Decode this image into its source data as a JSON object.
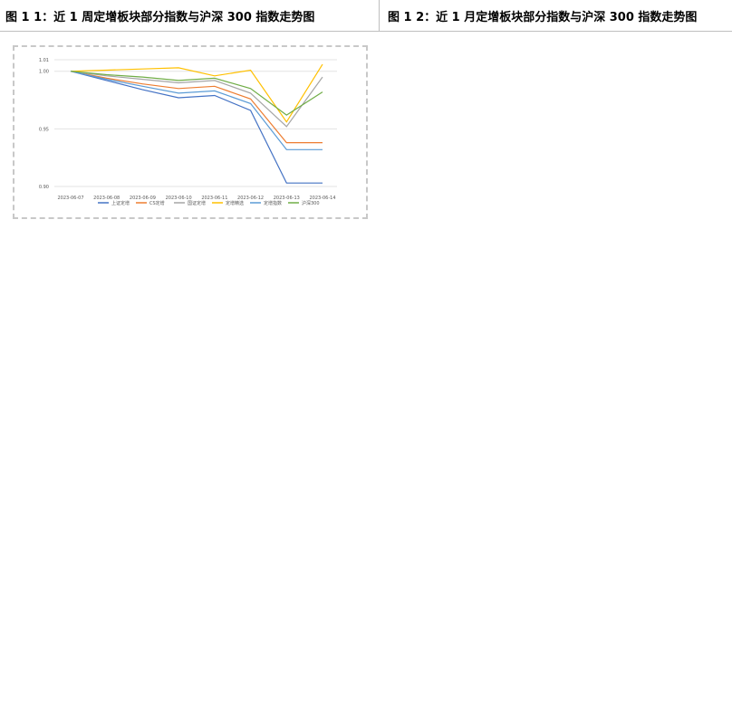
{
  "titles": {
    "left": "图 1 1：近 1 周定增板块部分指数与沪深 300 指数走势图",
    "right": "图 1 2：近 1 月定增板块部分指数与沪深 300 指数走势图"
  },
  "chart_data": {
    "type": "line",
    "title": "",
    "xlabel": "",
    "ylabel": "",
    "ylim": [
      0.9,
      1.01
    ],
    "yticks": [
      "0.90",
      "0.95",
      "1.00",
      "1.01"
    ],
    "grid": true,
    "legend_position": "bottom",
    "categories": [
      "2023-06-07",
      "2023-06-08",
      "2023-06-09",
      "2023-06-10",
      "2023-06-11",
      "2023-06-12",
      "2023-06-13",
      "2023-06-14"
    ],
    "colors": [
      "#4472c4",
      "#ed7d31",
      "#a5a5a5",
      "#ffc000",
      "#5b9bd5",
      "#70ad47"
    ],
    "series": [
      {
        "name": "上证定增",
        "values": [
          1.0,
          0.992,
          0.984,
          0.977,
          0.979,
          0.966,
          0.903,
          0.903
        ]
      },
      {
        "name": "CS定增",
        "values": [
          1.0,
          0.994,
          0.989,
          0.985,
          0.987,
          0.976,
          0.938,
          0.938
        ]
      },
      {
        "name": "国证定增",
        "values": [
          1.0,
          0.996,
          0.993,
          0.99,
          0.992,
          0.981,
          0.952,
          0.995
        ]
      },
      {
        "name": "定增精选",
        "values": [
          1.0,
          1.001,
          1.002,
          1.003,
          0.996,
          1.001,
          0.956,
          1.006
        ]
      },
      {
        "name": "定增指数",
        "values": [
          1.0,
          0.993,
          0.987,
          0.981,
          0.983,
          0.972,
          0.932,
          0.932
        ]
      },
      {
        "name": "沪深300",
        "values": [
          1.0,
          0.997,
          0.995,
          0.992,
          0.994,
          0.985,
          0.962,
          0.982
        ]
      }
    ]
  }
}
